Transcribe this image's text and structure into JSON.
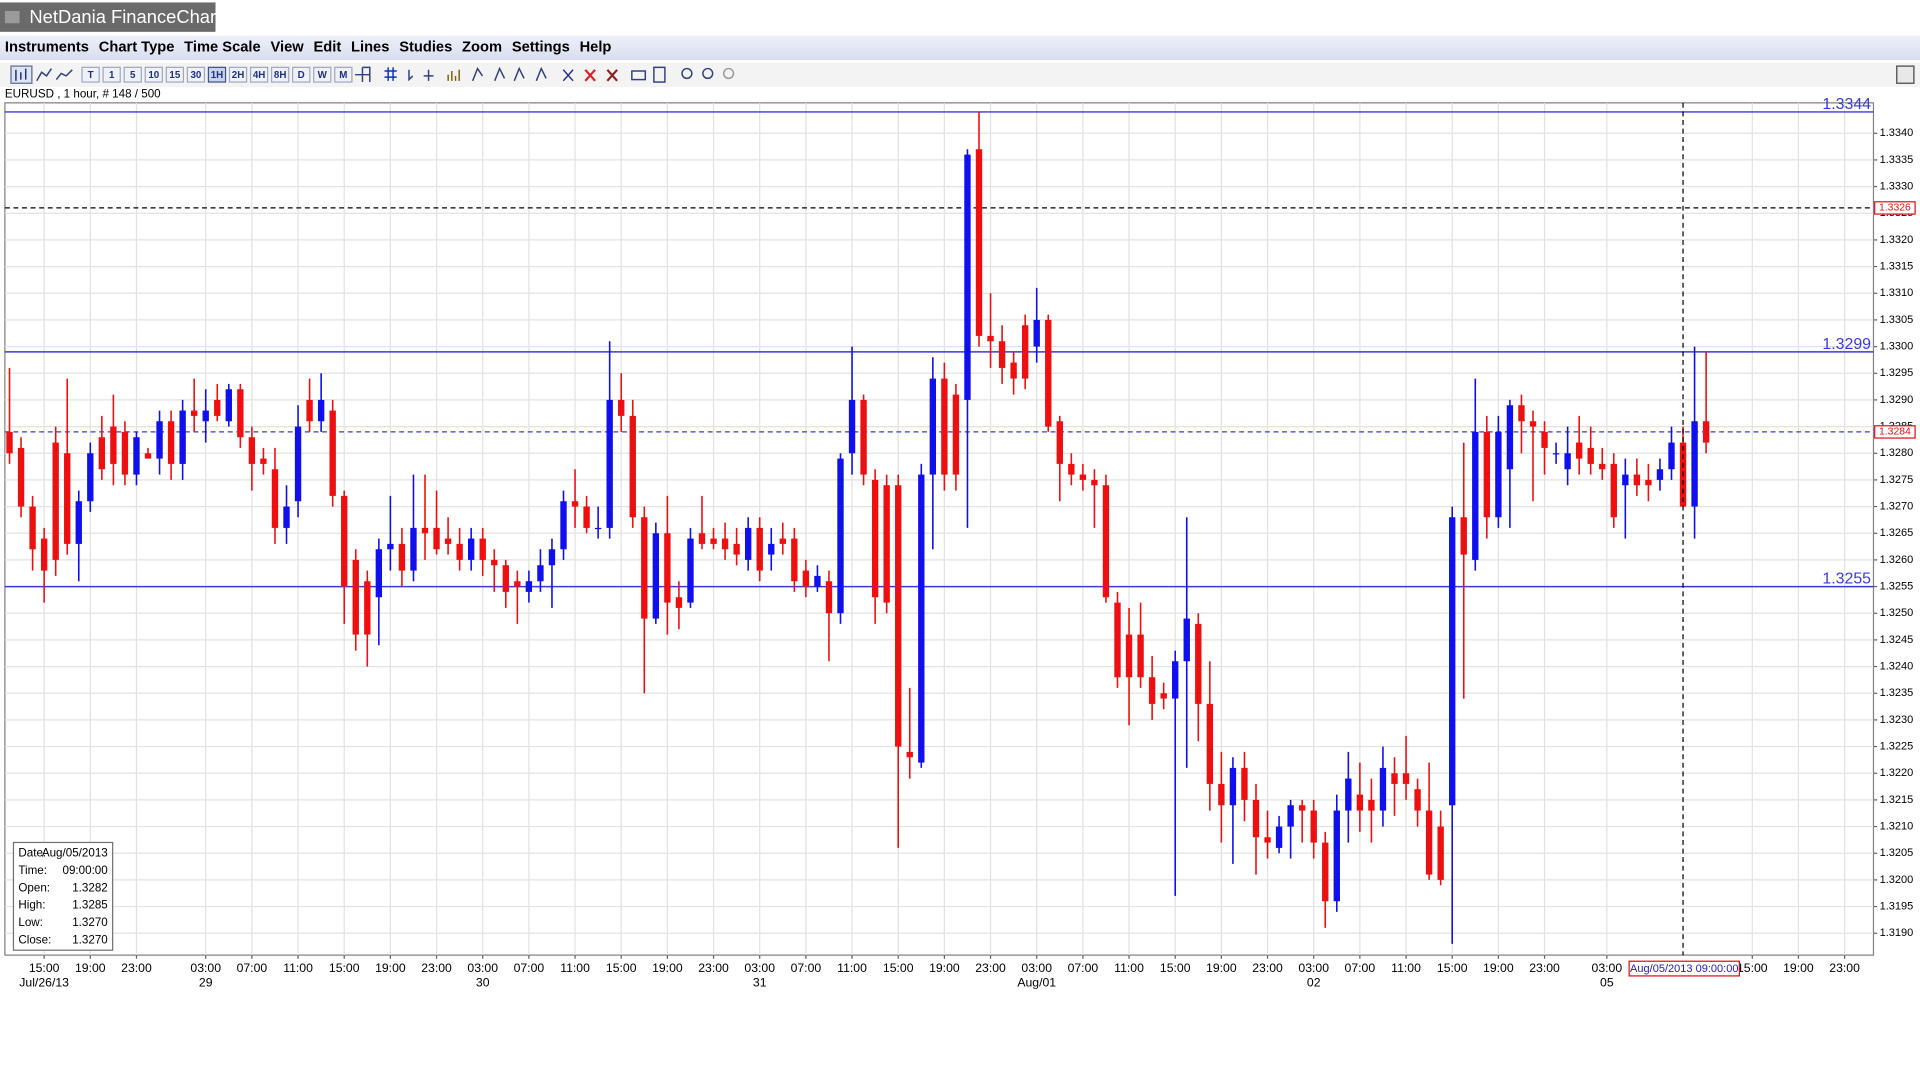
{
  "window": {
    "title": "NetDania FinanceChart"
  },
  "menu": [
    "Instruments",
    "Chart Type",
    "Time Scale",
    "View",
    "Edit",
    "Lines",
    "Studies",
    "Zoom",
    "Settings",
    "Help"
  ],
  "toolbar": [
    "T",
    "1",
    "5",
    "10",
    "15",
    "30",
    "1H",
    "2H",
    "4H",
    "8H",
    "D",
    "W",
    "M"
  ],
  "info_box": {
    "rows": [
      {
        "label": "Date:",
        "value": "Aug/05/2013"
      },
      {
        "label": "Time:",
        "value": "09:00:00"
      },
      {
        "label": "Open:",
        "value": "1.3282"
      },
      {
        "label": "High:",
        "value": "1.3285"
      },
      {
        "label": "Low:",
        "value": "1.3270"
      },
      {
        "label": "Close:",
        "value": "1.3270"
      }
    ]
  },
  "chart_data": {
    "type": "candlestick",
    "title": "EURUSD , 1 hour, # 148 / 500",
    "up_color": "#1010ee",
    "down_color": "#ee1010",
    "open": [
      1.3284,
      1.3281,
      1.327,
      1.3264,
      1.3282,
      1.328,
      1.3263,
      1.3271,
      1.3283,
      1.3285,
      1.3284,
      1.3276,
      1.328,
      1.3279,
      1.3286,
      1.3278,
      1.3288,
      1.3286,
      1.329,
      1.3286,
      1.3292,
      1.3283,
      1.3279,
      1.3277,
      1.3266,
      1.3271,
      1.329,
      1.3286,
      1.3288,
      1.3272,
      1.326,
      1.3256,
      1.3253,
      1.3262,
      1.3263,
      1.3258,
      1.3266,
      1.3266,
      1.3264,
      1.3263,
      1.326,
      1.3264,
      1.326,
      1.3259,
      1.3256,
      1.3254,
      1.3256,
      1.3259,
      1.3262,
      1.3271,
      1.327,
      1.3266,
      1.3266,
      1.329,
      1.3287,
      1.3268,
      1.3249,
      1.3265,
      1.3253,
      1.3252,
      1.3265,
      1.3264,
      1.3264,
      1.3263,
      1.326,
      1.3266,
      1.3261,
      1.3264,
      1.3264,
      1.3258,
      1.3255,
      1.3256,
      1.325,
      1.328,
      1.329,
      1.3275,
      1.3274,
      1.3274,
      1.3224,
      1.3222,
      1.3276,
      1.3294,
      1.3291,
      1.329,
      1.3337,
      1.3302,
      1.3301,
      1.3297,
      1.3304,
      1.33,
      1.3305,
      1.3286,
      1.3278,
      1.3276,
      1.3275,
      1.3274,
      1.3252,
      1.3246,
      1.3246,
      1.3238,
      1.3235,
      1.3234,
      1.3241,
      1.3248,
      1.3233,
      1.3218,
      1.3214,
      1.3221,
      1.3215,
      1.3208,
      1.3206,
      1.321,
      1.3214,
      1.3213,
      1.3207,
      1.3196,
      1.3213,
      1.3216,
      1.3215,
      1.3213,
      1.322,
      1.322,
      1.3217,
      1.3213,
      1.321,
      1.3214,
      1.3268,
      1.326,
      1.3284,
      1.3268,
      1.3277,
      1.3289,
      1.3286,
      1.3284,
      1.328,
      1.3277,
      1.3282,
      1.3281,
      1.3278,
      1.3278,
      1.3274,
      1.3276,
      1.3275,
      1.3275,
      1.3277,
      1.3282,
      1.327,
      1.3286
    ],
    "high": [
      1.3296,
      1.3283,
      1.3272,
      1.3266,
      1.3285,
      1.3294,
      1.3273,
      1.3282,
      1.3287,
      1.3291,
      1.3286,
      1.3284,
      1.3281,
      1.3288,
      1.3288,
      1.329,
      1.3294,
      1.3292,
      1.3293,
      1.3293,
      1.3293,
      1.3285,
      1.3281,
      1.3281,
      1.3274,
      1.3289,
      1.3294,
      1.3295,
      1.329,
      1.3273,
      1.3262,
      1.3258,
      1.3264,
      1.3272,
      1.3266,
      1.3276,
      1.3276,
      1.3273,
      1.3268,
      1.3266,
      1.3266,
      1.3266,
      1.3262,
      1.326,
      1.3258,
      1.3258,
      1.3262,
      1.3264,
      1.3273,
      1.3277,
      1.3272,
      1.327,
      1.3301,
      1.3295,
      1.329,
      1.327,
      1.3267,
      1.3272,
      1.3256,
      1.3266,
      1.3272,
      1.3266,
      1.3267,
      1.3266,
      1.3268,
      1.3268,
      1.3266,
      1.3267,
      1.3266,
      1.326,
      1.3259,
      1.3258,
      1.328,
      1.33,
      1.3291,
      1.3277,
      1.3276,
      1.3276,
      1.3236,
      1.3278,
      1.3298,
      1.3297,
      1.3293,
      1.3337,
      1.3344,
      1.331,
      1.3304,
      1.3299,
      1.3306,
      1.3311,
      1.3306,
      1.3287,
      1.328,
      1.3278,
      1.3277,
      1.3276,
      1.3254,
      1.3251,
      1.3252,
      1.3242,
      1.3237,
      1.3243,
      1.3268,
      1.325,
      1.3241,
      1.3224,
      1.3223,
      1.3224,
      1.3218,
      1.3213,
      1.3212,
      1.3215,
      1.3215,
      1.3215,
      1.3209,
      1.3216,
      1.3224,
      1.3222,
      1.3219,
      1.3225,
      1.3223,
      1.3227,
      1.3219,
      1.3222,
      1.3213,
      1.327,
      1.3282,
      1.3294,
      1.3287,
      1.3287,
      1.329,
      1.3291,
      1.3288,
      1.3286,
      1.3282,
      1.3285,
      1.3287,
      1.3285,
      1.3281,
      1.328,
      1.3279,
      1.3279,
      1.3278,
      1.3279,
      1.3285,
      1.3285,
      1.33,
      1.3299
    ],
    "low": [
      1.3278,
      1.3268,
      1.3258,
      1.3252,
      1.3257,
      1.3261,
      1.3256,
      1.3269,
      1.3275,
      1.3274,
      1.3274,
      1.3274,
      1.3279,
      1.3276,
      1.3275,
      1.3275,
      1.3284,
      1.3282,
      1.3286,
      1.3285,
      1.3281,
      1.3273,
      1.3276,
      1.3263,
      1.3263,
      1.3268,
      1.3284,
      1.3284,
      1.327,
      1.3248,
      1.3243,
      1.324,
      1.3244,
      1.3258,
      1.3255,
      1.3256,
      1.326,
      1.3261,
      1.3261,
      1.3258,
      1.3258,
      1.3257,
      1.3254,
      1.3251,
      1.3248,
      1.3252,
      1.3254,
      1.3251,
      1.326,
      1.3266,
      1.3265,
      1.3264,
      1.3264,
      1.3284,
      1.3266,
      1.3235,
      1.3248,
      1.3246,
      1.3247,
      1.3251,
      1.3262,
      1.3262,
      1.326,
      1.3259,
      1.3258,
      1.3256,
      1.3258,
      1.3261,
      1.3254,
      1.3253,
      1.3254,
      1.3241,
      1.3248,
      1.3276,
      1.3274,
      1.3248,
      1.325,
      1.3206,
      1.3219,
      1.3221,
      1.3262,
      1.3273,
      1.3273,
      1.3266,
      1.33,
      1.3296,
      1.3293,
      1.3291,
      1.3292,
      1.3297,
      1.3284,
      1.3271,
      1.3274,
      1.3273,
      1.3266,
      1.3252,
      1.3236,
      1.3229,
      1.3236,
      1.323,
      1.3232,
      1.3197,
      1.3221,
      1.3226,
      1.3213,
      1.3207,
      1.3203,
      1.3211,
      1.3201,
      1.3204,
      1.3205,
      1.3204,
      1.3207,
      1.3204,
      1.3191,
      1.3194,
      1.3207,
      1.3209,
      1.3207,
      1.321,
      1.3212,
      1.3215,
      1.321,
      1.32,
      1.3199,
      1.3188,
      1.3234,
      1.3258,
      1.3264,
      1.3266,
      1.3266,
      1.328,
      1.3271,
      1.3276,
      1.3278,
      1.3274,
      1.3276,
      1.3276,
      1.3275,
      1.3266,
      1.3264,
      1.3272,
      1.3271,
      1.3273,
      1.3275,
      1.327,
      1.3264,
      1.328
    ],
    "close": [
      1.328,
      1.327,
      1.3262,
      1.3258,
      1.326,
      1.3263,
      1.3271,
      1.328,
      1.3277,
      1.3278,
      1.3276,
      1.3283,
      1.3279,
      1.3286,
      1.3278,
      1.3288,
      1.3287,
      1.3288,
      1.3287,
      1.3292,
      1.3283,
      1.3278,
      1.3278,
      1.3266,
      1.327,
      1.3285,
      1.3286,
      1.329,
      1.3272,
      1.3255,
      1.3246,
      1.3246,
      1.3262,
      1.3263,
      1.3258,
      1.3266,
      1.3265,
      1.3262,
      1.3263,
      1.326,
      1.3264,
      1.326,
      1.3259,
      1.3254,
      1.3255,
      1.3256,
      1.3259,
      1.3262,
      1.3271,
      1.327,
      1.3266,
      1.3266,
      1.329,
      1.3287,
      1.3268,
      1.3249,
      1.3265,
      1.3252,
      1.3251,
      1.3264,
      1.3263,
      1.3263,
      1.3262,
      1.3261,
      1.3266,
      1.3258,
      1.3263,
      1.3263,
      1.3256,
      1.3255,
      1.3257,
      1.325,
      1.3279,
      1.329,
      1.3276,
      1.3253,
      1.3252,
      1.3225,
      1.3223,
      1.3276,
      1.3294,
      1.3276,
      1.3276,
      1.3336,
      1.3302,
      1.3301,
      1.3296,
      1.3294,
      1.3294,
      1.3305,
      1.3285,
      1.3278,
      1.3276,
      1.3275,
      1.3274,
      1.3253,
      1.3238,
      1.3238,
      1.3238,
      1.3233,
      1.3234,
      1.3241,
      1.3249,
      1.3233,
      1.3218,
      1.3214,
      1.3221,
      1.3215,
      1.3208,
      1.3207,
      1.321,
      1.3214,
      1.3213,
      1.3207,
      1.3196,
      1.3213,
      1.3219,
      1.3213,
      1.3213,
      1.3221,
      1.3218,
      1.3218,
      1.3213,
      1.3201,
      1.32,
      1.3268,
      1.3261,
      1.3284,
      1.3268,
      1.3284,
      1.3289,
      1.3286,
      1.3285,
      1.3281,
      1.328,
      1.328,
      1.3279,
      1.3278,
      1.3277,
      1.3268,
      1.3276,
      1.3274,
      1.3274,
      1.3277,
      1.3282,
      1.327,
      1.3286,
      1.3282
    ],
    "xlim": [
      -0.4,
      161.5
    ],
    "xticks": [
      {
        "value": 3,
        "label": "15:00",
        "sublabel": "Jul/26/13"
      },
      {
        "value": 7,
        "label": "19:00"
      },
      {
        "value": 11,
        "label": "23:00"
      },
      {
        "value": 17,
        "label": "03:00",
        "sublabel": "29"
      },
      {
        "value": 21,
        "label": "07:00"
      },
      {
        "value": 25,
        "label": "11:00"
      },
      {
        "value": 29,
        "label": "15:00"
      },
      {
        "value": 33,
        "label": "19:00"
      },
      {
        "value": 37,
        "label": "23:00"
      },
      {
        "value": 41,
        "label": "03:00",
        "sublabel": "30"
      },
      {
        "value": 45,
        "label": "07:00"
      },
      {
        "value": 49,
        "label": "11:00"
      },
      {
        "value": 53,
        "label": "15:00"
      },
      {
        "value": 57,
        "label": "19:00"
      },
      {
        "value": 61,
        "label": "23:00"
      },
      {
        "value": 65,
        "label": "03:00",
        "sublabel": "31"
      },
      {
        "value": 69,
        "label": "07:00"
      },
      {
        "value": 73,
        "label": "11:00"
      },
      {
        "value": 77,
        "label": "15:00"
      },
      {
        "value": 81,
        "label": "19:00"
      },
      {
        "value": 85,
        "label": "23:00"
      },
      {
        "value": 89,
        "label": "03:00",
        "sublabel": "Aug/01"
      },
      {
        "value": 93,
        "label": "07:00"
      },
      {
        "value": 97,
        "label": "11:00"
      },
      {
        "value": 101,
        "label": "15:00"
      },
      {
        "value": 105,
        "label": "19:00"
      },
      {
        "value": 109,
        "label": "23:00"
      },
      {
        "value": 113,
        "label": "03:00",
        "sublabel": "02"
      },
      {
        "value": 117,
        "label": "07:00"
      },
      {
        "value": 121,
        "label": "11:00"
      },
      {
        "value": 125,
        "label": "15:00"
      },
      {
        "value": 129,
        "label": "19:00"
      },
      {
        "value": 133,
        "label": "23:00"
      },
      {
        "value": 138.4,
        "label": "03:00",
        "sublabel": "05"
      },
      {
        "value": 151,
        "label": "15:00"
      },
      {
        "value": 155,
        "label": "19:00"
      },
      {
        "value": 159,
        "label": "23:00"
      }
    ],
    "ylim": [
      1.31859,
      1.33457
    ],
    "yticks": [
      {
        "value": 1.319,
        "label": "1.3190"
      },
      {
        "value": 1.3195,
        "label": "1.3195"
      },
      {
        "value": 1.32,
        "label": "1.3200"
      },
      {
        "value": 1.3205,
        "label": "1.3205"
      },
      {
        "value": 1.321,
        "label": "1.3210"
      },
      {
        "value": 1.3215,
        "label": "1.3215"
      },
      {
        "value": 1.322,
        "label": "1.3220"
      },
      {
        "value": 1.3225,
        "label": "1.3225"
      },
      {
        "value": 1.323,
        "label": "1.3230"
      },
      {
        "value": 1.3235,
        "label": "1.3235"
      },
      {
        "value": 1.324,
        "label": "1.3240"
      },
      {
        "value": 1.3245,
        "label": "1.3245"
      },
      {
        "value": 1.325,
        "label": "1.3250"
      },
      {
        "value": 1.3255,
        "label": "1.3255"
      },
      {
        "value": 1.326,
        "label": "1.3260"
      },
      {
        "value": 1.3265,
        "label": "1.3265"
      },
      {
        "value": 1.327,
        "label": "1.3270"
      },
      {
        "value": 1.3275,
        "label": "1.3275"
      },
      {
        "value": 1.328,
        "label": "1.3280"
      },
      {
        "value": 1.3285,
        "label": "1.3285"
      },
      {
        "value": 1.329,
        "label": "1.3290"
      },
      {
        "value": 1.3295,
        "label": "1.3295"
      },
      {
        "value": 1.33,
        "label": "1.3300"
      },
      {
        "value": 1.3305,
        "label": "1.3305"
      },
      {
        "value": 1.331,
        "label": "1.3310"
      },
      {
        "value": 1.3315,
        "label": "1.3315"
      },
      {
        "value": 1.332,
        "label": "1.3320"
      },
      {
        "value": 1.3325,
        "label": "1.3325"
      },
      {
        "value": 1.333,
        "label": "1.3330"
      },
      {
        "value": 1.3335,
        "label": "1.3335"
      },
      {
        "value": 1.334,
        "label": "1.3340"
      }
    ],
    "grid": true,
    "lines": [
      {
        "value": 1.3344,
        "label": "1.3344",
        "color": "#3a3ad8"
      },
      {
        "value": 1.3299,
        "label": "1.3299",
        "color": "#3a3ad8"
      },
      {
        "value": 1.3255,
        "label": "1.3255",
        "color": "#3a3ad8"
      }
    ],
    "markers": [
      {
        "value": 1.3326,
        "label": "1.3326",
        "color": "#000000"
      },
      {
        "value": 1.3284,
        "label": "1.3284",
        "color": "#3a3ad8"
      }
    ],
    "crosshair": {
      "index": 145,
      "label": "Aug/05/2013 09:00:00"
    }
  }
}
